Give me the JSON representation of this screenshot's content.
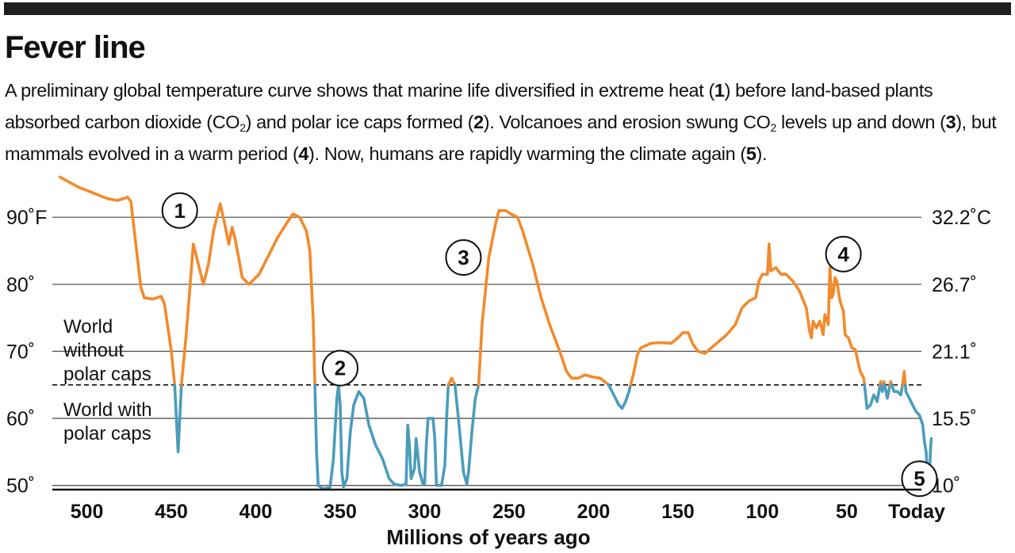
{
  "header": {
    "title": "Fever line",
    "subtitle_parts": [
      {
        "t": "A preliminary global temperature curve shows that marine life diversified in extreme heat ("
      },
      {
        "t": "1",
        "b": true
      },
      {
        "t": ") before land-based plants absorbed carbon dioxide (CO"
      },
      {
        "t": "2",
        "sub": true
      },
      {
        "t": ") and polar ice caps formed ("
      },
      {
        "t": "2",
        "b": true
      },
      {
        "t": "). Volcanoes and erosion swung CO"
      },
      {
        "t": "2",
        "sub": true
      },
      {
        "t": " levels up and down ("
      },
      {
        "t": "3",
        "b": true
      },
      {
        "t": "), but mammals evolved in a warm period ("
      },
      {
        "t": "4",
        "b": true
      },
      {
        "t": "). Now, humans are rapidly warming the climate again ("
      },
      {
        "t": "5",
        "b": true
      },
      {
        "t": ")."
      }
    ]
  },
  "chart_data": {
    "type": "line",
    "xlabel": "Millions of years ago",
    "xlim": [
      520,
      -5
    ],
    "ylim": [
      45,
      97
    ],
    "x_ticks": [
      {
        "value": 500,
        "label": "500"
      },
      {
        "value": 450,
        "label": "450"
      },
      {
        "value": 400,
        "label": "400"
      },
      {
        "value": 350,
        "label": "350"
      },
      {
        "value": 300,
        "label": "300"
      },
      {
        "value": 250,
        "label": "250"
      },
      {
        "value": 200,
        "label": "200"
      },
      {
        "value": 150,
        "label": "150"
      },
      {
        "value": 100,
        "label": "100"
      },
      {
        "value": 50,
        "label": "50"
      },
      {
        "value": 0,
        "label": "Today"
      }
    ],
    "y_ticks_left": [
      {
        "value": 90,
        "label": "90˚F"
      },
      {
        "value": 80,
        "label": "80˚"
      },
      {
        "value": 70,
        "label": "70˚"
      },
      {
        "value": 60,
        "label": "60˚"
      },
      {
        "value": 50,
        "label": "50˚"
      }
    ],
    "y_ticks_right": [
      {
        "value": 90,
        "label": "32.2˚C"
      },
      {
        "value": 80,
        "label": "26.7˚"
      },
      {
        "value": 70,
        "label": "21.1˚"
      },
      {
        "value": 60,
        "label": "15.5˚"
      },
      {
        "value": 50,
        "label": "10˚"
      }
    ],
    "grid": "horizontal",
    "threshold": {
      "value": 65,
      "above_label": [
        "World",
        "without",
        "polar caps"
      ],
      "below_label": [
        "World with",
        "polar caps"
      ]
    },
    "colors": {
      "above": "#f28a2c",
      "below": "#4b9cbb",
      "grid": "#555555",
      "text": "#111111",
      "axis": "#111111"
    },
    "markers": [
      {
        "label": "1",
        "x": 445,
        "y": 91
      },
      {
        "label": "2",
        "x": 350,
        "y": 67.5
      },
      {
        "label": "3",
        "x": 277,
        "y": 84
      },
      {
        "label": "4",
        "x": 52,
        "y": 84.5
      },
      {
        "label": "5",
        "x": 7,
        "y": 51
      }
    ],
    "series": [
      {
        "values": [
          [
            516,
            96
          ],
          [
            505,
            94.5
          ],
          [
            495,
            93.5
          ],
          [
            488,
            92.8
          ],
          [
            482,
            92.5
          ],
          [
            478,
            92.8
          ],
          [
            476,
            93
          ],
          [
            474,
            92.4
          ],
          [
            471,
            86
          ],
          [
            468,
            79.5
          ],
          [
            466,
            78
          ],
          [
            461,
            77.8
          ],
          [
            456,
            78.2
          ],
          [
            454,
            77
          ],
          [
            450,
            70
          ],
          [
            448,
            65
          ],
          [
            446,
            55
          ],
          [
            444,
            65
          ],
          [
            441,
            73
          ],
          [
            437,
            86
          ],
          [
            434,
            83
          ],
          [
            431,
            80
          ],
          [
            428,
            83
          ],
          [
            425,
            88
          ],
          [
            421,
            92
          ],
          [
            418,
            88.5
          ],
          [
            416,
            86
          ],
          [
            414,
            88.5
          ],
          [
            412,
            86.5
          ],
          [
            408,
            81
          ],
          [
            404,
            80
          ],
          [
            398,
            81.5
          ],
          [
            393,
            84
          ],
          [
            387,
            87
          ],
          [
            382,
            89
          ],
          [
            378,
            90.5
          ],
          [
            374,
            90
          ],
          [
            370,
            88
          ],
          [
            368,
            85
          ],
          [
            366,
            75
          ],
          [
            365,
            65
          ],
          [
            364,
            55
          ],
          [
            363,
            50
          ],
          [
            360,
            49.5
          ],
          [
            356,
            49.7
          ],
          [
            354,
            54
          ],
          [
            352,
            63
          ],
          [
            351,
            65
          ],
          [
            350,
            62
          ],
          [
            349,
            52
          ],
          [
            348,
            49.8
          ],
          [
            346,
            51
          ],
          [
            344,
            58
          ],
          [
            342,
            62
          ],
          [
            339,
            64
          ],
          [
            336,
            63
          ],
          [
            333,
            59
          ],
          [
            329,
            56
          ],
          [
            325,
            54
          ],
          [
            321,
            51
          ],
          [
            318,
            50.2
          ],
          [
            314,
            50
          ],
          [
            311,
            50.2
          ],
          [
            310,
            59
          ],
          [
            309,
            56
          ],
          [
            308,
            51
          ],
          [
            306,
            52.5
          ],
          [
            305,
            57
          ],
          [
            303,
            52
          ],
          [
            301,
            50.2
          ],
          [
            300,
            50.3
          ],
          [
            299,
            56
          ],
          [
            298,
            60
          ],
          [
            295,
            60
          ],
          [
            294,
            57
          ],
          [
            293,
            50
          ],
          [
            290,
            50
          ],
          [
            288,
            53
          ],
          [
            287,
            60
          ],
          [
            286,
            65
          ],
          [
            284,
            66
          ],
          [
            282,
            65
          ],
          [
            280,
            60
          ],
          [
            277,
            52
          ],
          [
            275,
            50.2
          ],
          [
            274,
            52
          ],
          [
            272,
            58
          ],
          [
            270,
            63
          ],
          [
            268,
            65
          ],
          [
            266,
            74
          ],
          [
            262,
            84
          ],
          [
            258,
            89
          ],
          [
            256,
            91
          ],
          [
            252,
            91
          ],
          [
            249,
            90.5
          ],
          [
            245,
            90
          ],
          [
            242,
            88
          ],
          [
            236,
            83
          ],
          [
            231,
            78
          ],
          [
            226,
            74
          ],
          [
            220,
            70
          ],
          [
            216,
            67
          ],
          [
            213,
            66
          ],
          [
            209,
            66
          ],
          [
            205,
            66.5
          ],
          [
            201,
            66.2
          ],
          [
            196,
            66
          ],
          [
            193,
            65.4
          ],
          [
            191,
            65
          ],
          [
            188,
            63.5
          ],
          [
            185,
            62
          ],
          [
            183,
            61.5
          ],
          [
            181,
            62.5
          ],
          [
            179,
            64
          ],
          [
            178,
            65
          ],
          [
            176,
            67
          ],
          [
            174,
            69.5
          ],
          [
            172,
            70.5
          ],
          [
            166,
            71.2
          ],
          [
            160,
            71.3
          ],
          [
            154,
            71.2
          ],
          [
            150,
            72
          ],
          [
            147,
            72.8
          ],
          [
            144,
            72.8
          ],
          [
            141,
            71
          ],
          [
            138,
            70
          ],
          [
            134,
            69.7
          ],
          [
            128,
            71
          ],
          [
            121,
            72.5
          ],
          [
            116,
            74
          ],
          [
            112,
            76.5
          ],
          [
            108,
            77.5
          ],
          [
            104,
            78
          ],
          [
            102,
            80.5
          ],
          [
            100,
            81.5
          ],
          [
            97,
            81.5
          ],
          [
            96,
            86
          ],
          [
            95,
            82
          ],
          [
            92,
            82.5
          ],
          [
            89,
            81.5
          ],
          [
            86,
            81.5
          ],
          [
            82,
            80.5
          ],
          [
            78,
            79
          ],
          [
            74,
            76.5
          ],
          [
            72,
            73
          ],
          [
            71,
            72
          ],
          [
            70,
            74.5
          ],
          [
            68,
            73.5
          ],
          [
            66,
            74.5
          ],
          [
            64,
            72.5
          ],
          [
            63,
            75.5
          ],
          [
            61,
            74
          ],
          [
            60,
            82.5
          ],
          [
            59,
            78
          ],
          [
            58,
            78.5
          ],
          [
            57,
            81
          ],
          [
            56,
            80.5
          ],
          [
            54,
            77.5
          ],
          [
            52,
            76
          ],
          [
            51,
            72.5
          ],
          [
            49,
            72
          ],
          [
            47,
            70.5
          ],
          [
            45,
            70.3
          ],
          [
            43,
            68
          ],
          [
            42,
            67
          ],
          [
            40,
            66
          ],
          [
            39.5,
            65
          ],
          [
            38,
            61.5
          ],
          [
            36,
            62
          ],
          [
            34,
            63.5
          ],
          [
            32,
            62.5
          ],
          [
            30,
            65.5
          ],
          [
            29,
            64
          ],
          [
            28,
            65.5
          ],
          [
            26,
            63
          ],
          [
            24,
            65.5
          ],
          [
            22,
            64
          ],
          [
            20,
            64
          ],
          [
            18,
            63.5
          ],
          [
            17,
            65
          ],
          [
            16,
            67
          ],
          [
            15,
            64
          ],
          [
            13,
            63
          ],
          [
            11,
            62
          ],
          [
            9,
            61
          ],
          [
            7,
            60.5
          ],
          [
            5,
            59
          ],
          [
            4,
            56.5
          ],
          [
            3,
            55
          ],
          [
            2,
            49.5
          ],
          [
            1.5,
            49
          ],
          [
            0.5,
            55
          ],
          [
            0,
            57
          ]
        ]
      }
    ]
  }
}
